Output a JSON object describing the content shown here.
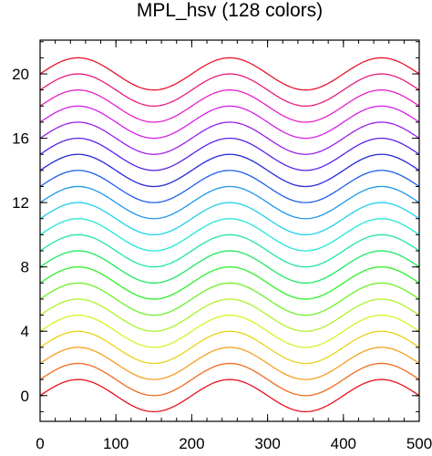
{
  "chart_data": {
    "type": "line",
    "title": "MPL_hsv (128 colors)",
    "xlabel": "",
    "ylabel": "",
    "xlim": [
      0,
      500
    ],
    "ylim": [
      -1.6,
      22.1
    ],
    "x_ticks": [
      0,
      100,
      200,
      300,
      400,
      500
    ],
    "y_ticks": [
      0,
      4,
      8,
      12,
      16,
      20
    ],
    "x_minor_step": 20,
    "y_minor_step": 1,
    "grid": false,
    "legend": "none",
    "curve": {
      "function": "offset + amplitude * sin(2*pi*(x - phase)/period)",
      "amplitude": 1,
      "period": 200,
      "phase": 0
    },
    "series": [
      {
        "offset": 0,
        "color": "#e8101a"
      },
      {
        "offset": 1,
        "color": "#f26a1e"
      },
      {
        "offset": 2,
        "color": "#f5a020"
      },
      {
        "offset": 3,
        "color": "#e8d21a"
      },
      {
        "offset": 4,
        "color": "#d9f224"
      },
      {
        "offset": 5,
        "color": "#aef22a"
      },
      {
        "offset": 6,
        "color": "#6ef028"
      },
      {
        "offset": 7,
        "color": "#2ef02a"
      },
      {
        "offset": 8,
        "color": "#1ce860"
      },
      {
        "offset": 9,
        "color": "#1ee6a6"
      },
      {
        "offset": 10,
        "color": "#20e8d4"
      },
      {
        "offset": 11,
        "color": "#1fd0e8"
      },
      {
        "offset": 12,
        "color": "#1f98e8"
      },
      {
        "offset": 13,
        "color": "#1f5fe8"
      },
      {
        "offset": 14,
        "color": "#2428d8"
      },
      {
        "offset": 15,
        "color": "#5a20e8"
      },
      {
        "offset": 16,
        "color": "#9a20e8"
      },
      {
        "offset": 17,
        "color": "#d420e8"
      },
      {
        "offset": 18,
        "color": "#e820c8"
      },
      {
        "offset": 19,
        "color": "#e81c7e"
      },
      {
        "offset": 20,
        "color": "#e8142e"
      }
    ]
  }
}
